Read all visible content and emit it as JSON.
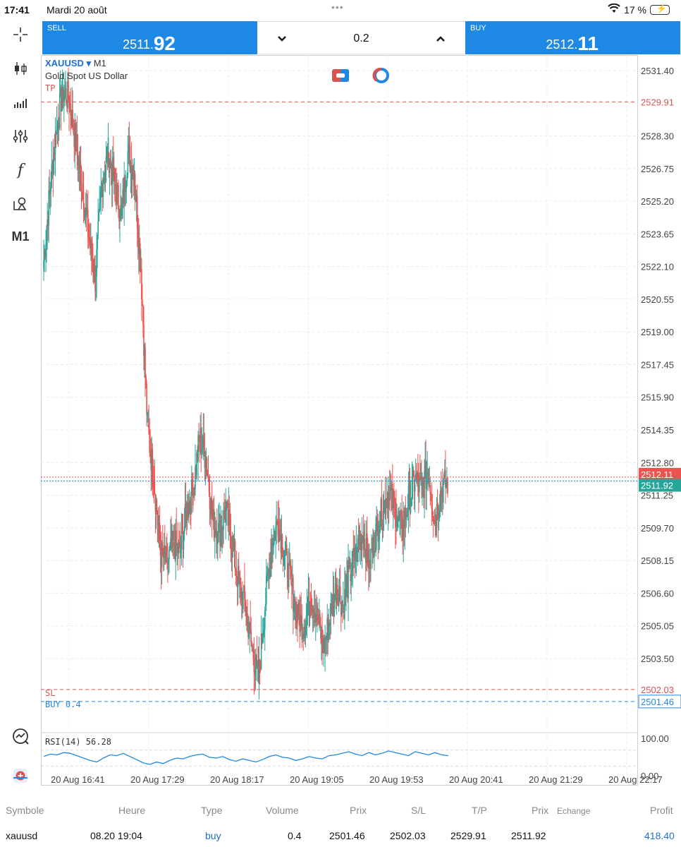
{
  "status_bar": {
    "time": "17:41",
    "date": "Mardi 20 août",
    "battery": "17 %",
    "battery_level": 0.17,
    "icons": [
      "wifi-icon",
      "battery-charging-icon"
    ]
  },
  "left_toolbar": {
    "items": [
      {
        "name": "crosshair",
        "icon": "crosshair-icon"
      },
      {
        "name": "chart-type",
        "icon": "candlestick-icon"
      },
      {
        "name": "volume",
        "icon": "bar-chart-icon"
      },
      {
        "name": "indicators",
        "icon": "sliders-icon"
      },
      {
        "name": "function",
        "icon": "function-icon",
        "label": "f"
      },
      {
        "name": "objects",
        "icon": "shapes-icon"
      },
      {
        "name": "timeframe",
        "label": "M1"
      }
    ],
    "bottom_items": [
      {
        "name": "analytics",
        "icon": "trend-circle-icon"
      },
      {
        "name": "add-window",
        "icon": "add-window-icon"
      }
    ]
  },
  "trade_bar": {
    "sell_label": "SELL",
    "sell_price_main": "2511.",
    "sell_price_big": "92",
    "lot": "0.2",
    "buy_label": "BUY",
    "buy_price_main": "2512.",
    "buy_price_big": "11",
    "colors": {
      "button": "#1e88e5"
    }
  },
  "chart_header": {
    "symbol": "XAUUSD",
    "arrow": "▾",
    "timeframe": "M1",
    "description": "Gold Spot US Dollar"
  },
  "chart_lines": {
    "tp_label": "TP",
    "sl_label": "SL",
    "buy_label": "BUY 0.4",
    "tp_price": "2529.91",
    "sl_price": "2502.03",
    "buy_price": "2501.46",
    "bid_badge": "2511.92",
    "ask_badge": "2512.11",
    "colors": {
      "tp_sl": "#d9534f",
      "buy": "#1e88e5",
      "bull": "#26a69a",
      "bear": "#ef5350",
      "bid_badge": "#26a69a"
    }
  },
  "rsi": {
    "label": "RSI(14) 56.28",
    "top": "100.00",
    "bottom": "0.00"
  },
  "chart_data": {
    "type": "line",
    "title": "",
    "xlabel": "",
    "ylabel": "",
    "ylim": [
      2500.25,
      2532.0
    ],
    "x": [
      "20 Aug 16:41",
      "20 Aug 17:29",
      "20 Aug 18:17",
      "20 Aug 19:05",
      "20 Aug 19:53",
      "20 Aug 20:41",
      "20 Aug 21:29",
      "20 Aug 22:17"
    ],
    "y_ticks": [
      "2531.40",
      "2528.30",
      "2526.75",
      "2525.20",
      "2523.65",
      "2522.10",
      "2520.55",
      "2519.00",
      "2517.45",
      "2515.90",
      "2514.35",
      "2512.80",
      "2511.25",
      "2509.70",
      "2508.15",
      "2506.60",
      "2505.05",
      "2503.50"
    ],
    "y_tick_values": [
      2531.4,
      2528.3,
      2526.75,
      2525.2,
      2523.65,
      2522.1,
      2520.55,
      2519.0,
      2517.45,
      2515.9,
      2514.35,
      2512.8,
      2511.25,
      2509.7,
      2508.15,
      2506.6,
      2505.05,
      2503.5
    ],
    "series": [
      {
        "name": "XAUUSD",
        "x": [
          0,
          6,
          12,
          18,
          24,
          30,
          36,
          42,
          48,
          54,
          60,
          66,
          72,
          78,
          84,
          90,
          96,
          102,
          108,
          114,
          120,
          126,
          132,
          138,
          144,
          150,
          156,
          162,
          168,
          174,
          180,
          186,
          192,
          198,
          204,
          210,
          216,
          222,
          228,
          234,
          240,
          246,
          252,
          258,
          264,
          270,
          276,
          282,
          288,
          294,
          300,
          306,
          312,
          318,
          324,
          330,
          336,
          342,
          348,
          354,
          360,
          366,
          372
        ],
        "close": [
          2522.0,
          2525.5,
          2528.5,
          2530.5,
          2530.0,
          2528.0,
          2526.0,
          2523.5,
          2521.5,
          2526.0,
          2527.5,
          2526.0,
          2524.5,
          2527.5,
          2526.5,
          2522.0,
          2514.5,
          2512.0,
          2508.5,
          2508.0,
          2509.0,
          2508.5,
          2510.5,
          2511.5,
          2514.0,
          2513.0,
          2510.0,
          2509.5,
          2510.5,
          2509.0,
          2507.0,
          2506.0,
          2504.0,
          2502.5,
          2506.0,
          2509.0,
          2510.0,
          2508.5,
          2507.0,
          2505.5,
          2505.0,
          2506.5,
          2505.5,
          2504.0,
          2505.5,
          2507.0,
          2506.0,
          2507.5,
          2508.5,
          2509.5,
          2508.0,
          2509.5,
          2510.5,
          2511.5,
          2510.5,
          2509.5,
          2511.0,
          2512.0,
          2511.5,
          2512.5,
          2510.0,
          2511.5,
          2511.9
        ]
      }
    ],
    "grid": true
  },
  "rsi_data": {
    "values": [
      54,
      60,
      58,
      64,
      62,
      56,
      50,
      44,
      40,
      50,
      58,
      56,
      62,
      54,
      46,
      38,
      34,
      40,
      36,
      44,
      50,
      48,
      54,
      58,
      60,
      52,
      50,
      54,
      46,
      42,
      48,
      44,
      40,
      46,
      54,
      58,
      52,
      50,
      44,
      48,
      54,
      50,
      48,
      56,
      58,
      62,
      66,
      60,
      56,
      64,
      58,
      62,
      68,
      64,
      60,
      56,
      66,
      62,
      58,
      64,
      58,
      56
    ]
  },
  "x_axis": {
    "labels": [
      "20 Aug 16:41",
      "20 Aug 17:29",
      "20 Aug 18:17",
      "20 Aug 19:05",
      "20 Aug 19:53",
      "20 Aug 20:41",
      "20 Aug 21:29",
      "20 Aug 22:17"
    ]
  },
  "positions": {
    "headers": {
      "symbol": "Symbole",
      "time": "Heure",
      "type": "Type",
      "volume": "Volume",
      "price": "Prix",
      "sl": "S/L",
      "tp": "T/P",
      "cur_price": "Prix",
      "exchange": "Echange",
      "profit": "Profit"
    },
    "rows": [
      {
        "symbol": "xauusd",
        "time": "08.20 19:04",
        "type": "buy",
        "volume": "0.4",
        "price": "2501.46",
        "sl": "2502.03",
        "tp": "2529.91",
        "cur_price": "2511.92",
        "profit": "418.40"
      }
    ],
    "colors": {
      "buy": "#1e6fd0",
      "profit": "#1e6fd0"
    }
  }
}
